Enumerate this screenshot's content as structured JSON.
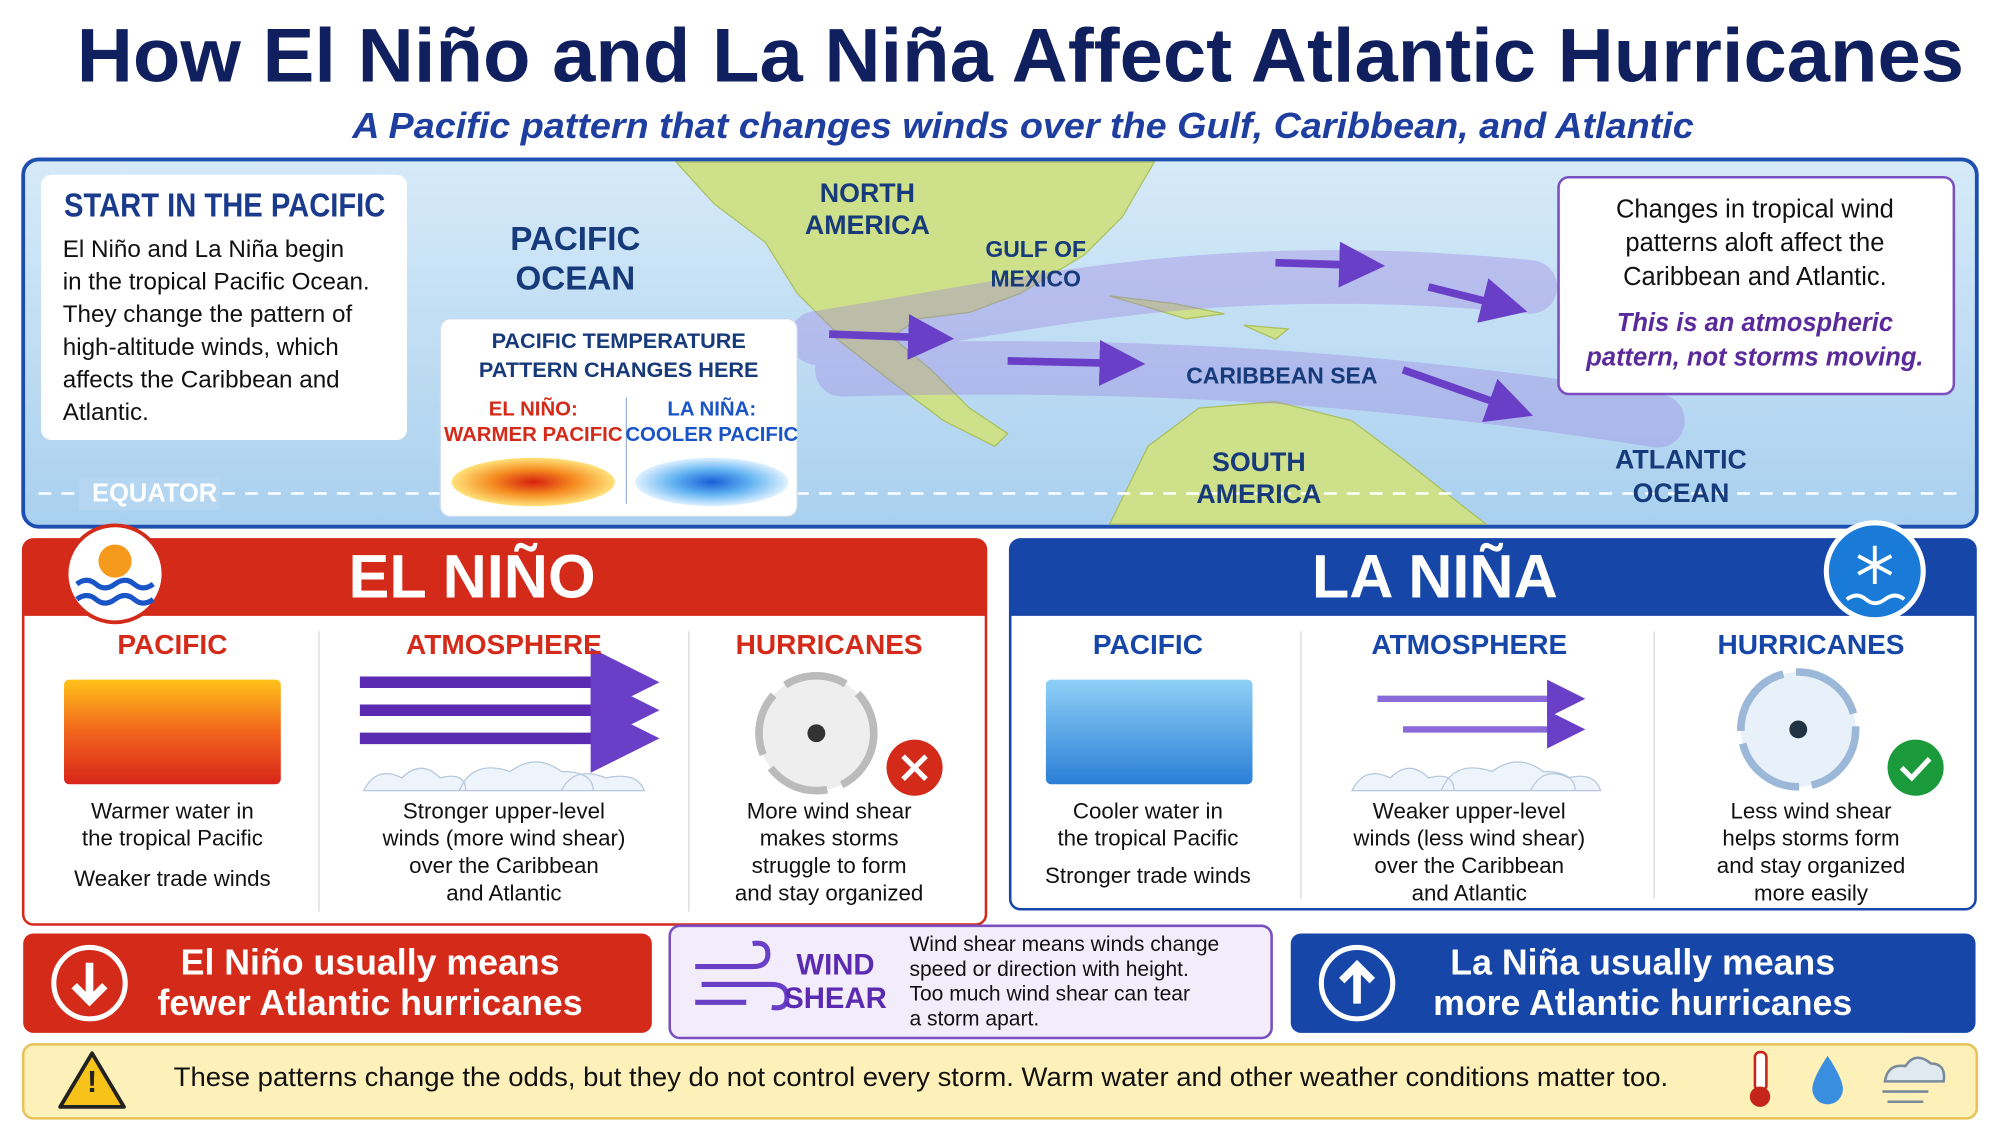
{
  "header": {
    "title": "How El Niño and La Niña Affect Atlantic Hurricanes",
    "subtitle": "A Pacific pattern that changes winds over the Gulf, Caribbean, and Atlantic"
  },
  "map": {
    "start_box": {
      "title": "START IN THE PACIFIC",
      "lines": [
        "El Niño and La Niña begin",
        "in the tropical Pacific Ocean.",
        "They change the pattern of",
        "high-altitude winds, which",
        "affects the Caribbean and",
        "Atlantic."
      ]
    },
    "labels": {
      "pacific_ocean": [
        "PACIFIC",
        "OCEAN"
      ],
      "north_america": [
        "NORTH",
        "AMERICA"
      ],
      "gulf": [
        "GULF OF",
        "MEXICO"
      ],
      "caribbean": "CARIBBEAN SEA",
      "south_america": [
        "SOUTH",
        "AMERICA"
      ],
      "atlantic": [
        "ATLANTIC",
        "OCEAN"
      ],
      "equator": "EQUATOR"
    },
    "temperature_box": {
      "title": [
        "PACIFIC TEMPERATURE",
        "PATTERN CHANGES HERE"
      ],
      "el_nino": [
        "EL NIÑO:",
        "WARMER PACIFIC"
      ],
      "la_nina": [
        "LA NIÑA:",
        "COOLER PACIFIC"
      ]
    },
    "callout": {
      "lines": [
        "Changes in tropical wind",
        "patterns aloft affect the",
        "Caribbean and Atlantic."
      ],
      "emphasis": [
        "This is an atmospheric",
        "pattern, not storms moving."
      ]
    }
  },
  "el_nino": {
    "title": "EL NIÑO",
    "columns": [
      {
        "heading": "PACIFIC",
        "lines": [
          "Warmer water in",
          "the tropical Pacific"
        ],
        "extra": "Weaker trade winds"
      },
      {
        "heading": "ATMOSPHERE",
        "lines": [
          "Stronger upper-level",
          "winds (more wind shear)",
          "over the Caribbean",
          "and Atlantic"
        ]
      },
      {
        "heading": "HURRICANES",
        "lines": [
          "More wind shear",
          "makes storms",
          "struggle to form",
          "and stay organized"
        ]
      }
    ]
  },
  "la_nina": {
    "title": "LA NIÑA",
    "columns": [
      {
        "heading": "PACIFIC",
        "lines": [
          "Cooler water in",
          "the tropical Pacific"
        ],
        "extra": "Stronger trade winds"
      },
      {
        "heading": "ATMOSPHERE",
        "lines": [
          "Weaker upper-level",
          "winds (less wind shear)",
          "over the Caribbean",
          "and Atlantic"
        ]
      },
      {
        "heading": "HURRICANES",
        "lines": [
          "Less wind shear",
          "helps storms form",
          "and stay organized",
          "more easily"
        ]
      }
    ]
  },
  "summary": {
    "el_nino": [
      "El Niño usually means",
      "fewer Atlantic hurricanes"
    ],
    "wind_shear": {
      "label": [
        "WIND",
        "SHEAR"
      ],
      "lines": [
        "Wind shear means winds change",
        "speed or direction with height.",
        "Too much wind shear can tear",
        "a storm apart."
      ]
    },
    "la_nina": [
      "La Niña usually means",
      "more Atlantic hurricanes"
    ]
  },
  "footer": {
    "note": "These patterns change the odds, but they do not control every storm.  Warm water and other weather conditions matter too."
  }
}
